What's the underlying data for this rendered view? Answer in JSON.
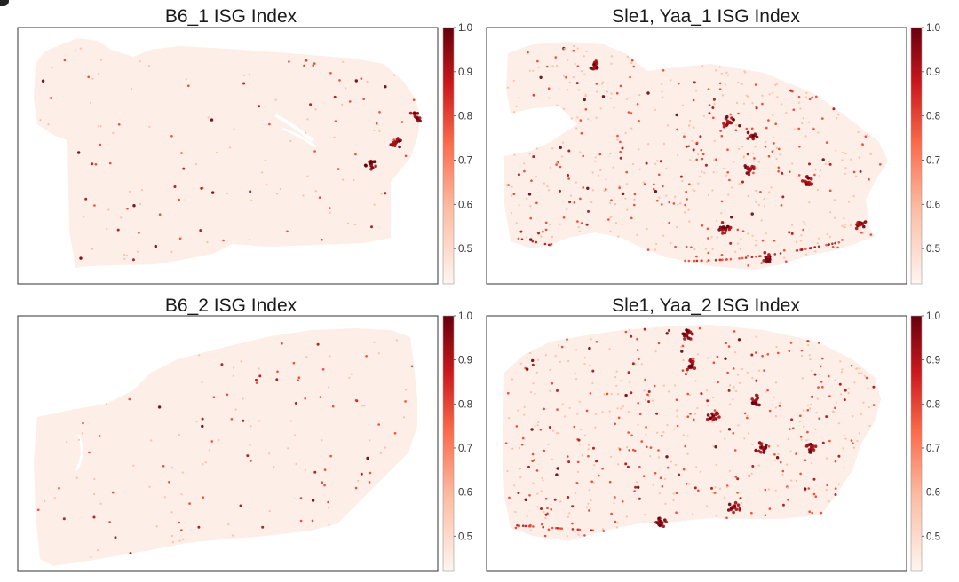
{
  "chart_data": [
    {
      "type": "heatmap",
      "title": "B6_1 ISG Index",
      "colorbar": {
        "min": 0.42,
        "max": 1.0,
        "ticks": [
          0.5,
          0.6,
          0.7,
          0.8,
          0.9,
          1.0
        ],
        "tick_labels": [
          "0.5",
          "0.6",
          "0.7",
          "0.8",
          "0.9",
          "1.0"
        ],
        "colors": [
          "#fff5f0",
          "#fcbba1",
          "#fb6a4a",
          "#cb181d",
          "#67000d"
        ]
      },
      "grid": false,
      "density": "low",
      "hotspot_count": 3
    },
    {
      "type": "heatmap",
      "title": "Sle1, Yaa_1 ISG Index",
      "colorbar": {
        "min": 0.42,
        "max": 1.0,
        "ticks": [
          0.5,
          0.6,
          0.7,
          0.8,
          0.9,
          1.0
        ],
        "tick_labels": [
          "0.5",
          "0.6",
          "0.7",
          "0.8",
          "0.9",
          "1.0"
        ],
        "colors": [
          "#fff5f0",
          "#fcbba1",
          "#fb6a4a",
          "#cb181d",
          "#67000d"
        ]
      },
      "grid": false,
      "density": "high",
      "hotspot_count": 8
    },
    {
      "type": "heatmap",
      "title": "B6_2 ISG Index",
      "colorbar": {
        "min": 0.42,
        "max": 1.0,
        "ticks": [
          0.5,
          0.6,
          0.7,
          0.8,
          0.9,
          1.0
        ],
        "tick_labels": [
          "0.5",
          "0.6",
          "0.7",
          "0.8",
          "0.9",
          "1.0"
        ],
        "colors": [
          "#fff5f0",
          "#fcbba1",
          "#fb6a4a",
          "#cb181d",
          "#67000d"
        ]
      },
      "grid": false,
      "density": "low",
      "hotspot_count": 0
    },
    {
      "type": "heatmap",
      "title": "Sle1, Yaa_2 ISG Index",
      "colorbar": {
        "min": 0.42,
        "max": 1.0,
        "ticks": [
          0.5,
          0.6,
          0.7,
          0.8,
          0.9,
          1.0
        ],
        "tick_labels": [
          "0.5",
          "0.6",
          "0.7",
          "0.8",
          "0.9",
          "1.0"
        ],
        "colors": [
          "#fff5f0",
          "#fcbba1",
          "#fb6a4a",
          "#cb181d",
          "#67000d"
        ]
      },
      "grid": false,
      "density": "high",
      "hotspot_count": 8
    }
  ],
  "colors": {
    "tissue_fill": "#fdeee7",
    "spot_low": "#fcbba1",
    "spot_mid": "#ef3b2c",
    "spot_high": "#a50f15",
    "spot_max": "#67000d",
    "frame": "#333333"
  }
}
